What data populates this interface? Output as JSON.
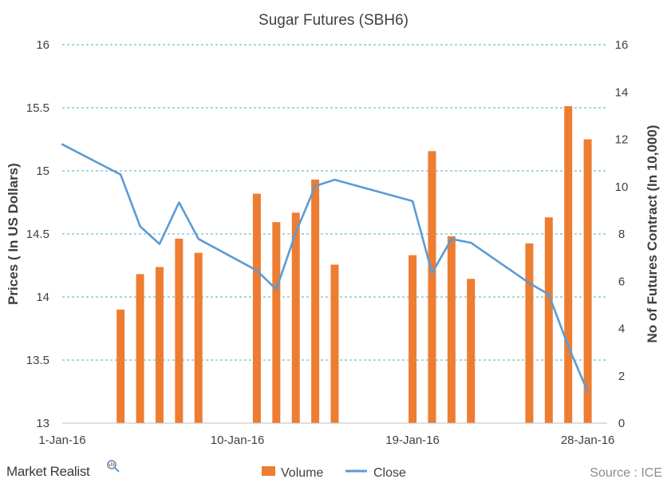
{
  "chart_data": {
    "type": "bar+line",
    "title": "Sugar Futures  (SBH6)",
    "ylabel_left": "Prices ( In US Dollars)",
    "ylabel_right": "No of Futures Contract (In 10,000)",
    "ylim_left": [
      13,
      16
    ],
    "yticks_left": [
      "13",
      "13.5",
      "14",
      "14.5",
      "15",
      "15.5",
      "16"
    ],
    "ylim_right": [
      0,
      16
    ],
    "yticks_right": [
      "0",
      "2",
      "4",
      "6",
      "8",
      "10",
      "12",
      "14",
      "16"
    ],
    "x_tick_labels": [
      "1-Jan-16",
      "10-Jan-16",
      "19-Jan-16",
      "28-Jan-16"
    ],
    "grid": "horizontal dashed",
    "legend_position": "bottom",
    "series": [
      {
        "name": "Volume",
        "type": "bar",
        "axis": "right",
        "color": "#ed7d31",
        "dates": [
          "4-Jan-16",
          "5-Jan-16",
          "6-Jan-16",
          "7-Jan-16",
          "8-Jan-16",
          "11-Jan-16",
          "12-Jan-16",
          "13-Jan-16",
          "14-Jan-16",
          "15-Jan-16",
          "19-Jan-16",
          "20-Jan-16",
          "21-Jan-16",
          "22-Jan-16",
          "25-Jan-16",
          "26-Jan-16",
          "27-Jan-16",
          "28-Jan-16"
        ],
        "values": [
          4.8,
          6.3,
          6.6,
          7.8,
          7.2,
          9.7,
          8.5,
          8.9,
          10.3,
          6.7,
          7.1,
          11.5,
          7.9,
          6.1,
          7.6,
          8.7,
          13.4,
          12.0
        ]
      },
      {
        "name": "Close",
        "type": "line",
        "axis": "left",
        "color": "#5b9bd5",
        "dates": [
          "1-Jan-16",
          "4-Jan-16",
          "5-Jan-16",
          "6-Jan-16",
          "7-Jan-16",
          "8-Jan-16",
          "11-Jan-16",
          "12-Jan-16",
          "13-Jan-16",
          "14-Jan-16",
          "15-Jan-16",
          "19-Jan-16",
          "20-Jan-16",
          "21-Jan-16",
          "22-Jan-16",
          "25-Jan-16",
          "26-Jan-16",
          "27-Jan-16",
          "28-Jan-16"
        ],
        "values": [
          15.21,
          14.97,
          14.56,
          14.42,
          14.75,
          14.46,
          14.21,
          14.06,
          14.51,
          14.88,
          14.93,
          14.76,
          14.19,
          14.46,
          14.43,
          14.11,
          14.02,
          13.61,
          13.25
        ]
      }
    ]
  },
  "footer": {
    "source": "Source : ICE",
    "brand": "Market Realist"
  }
}
